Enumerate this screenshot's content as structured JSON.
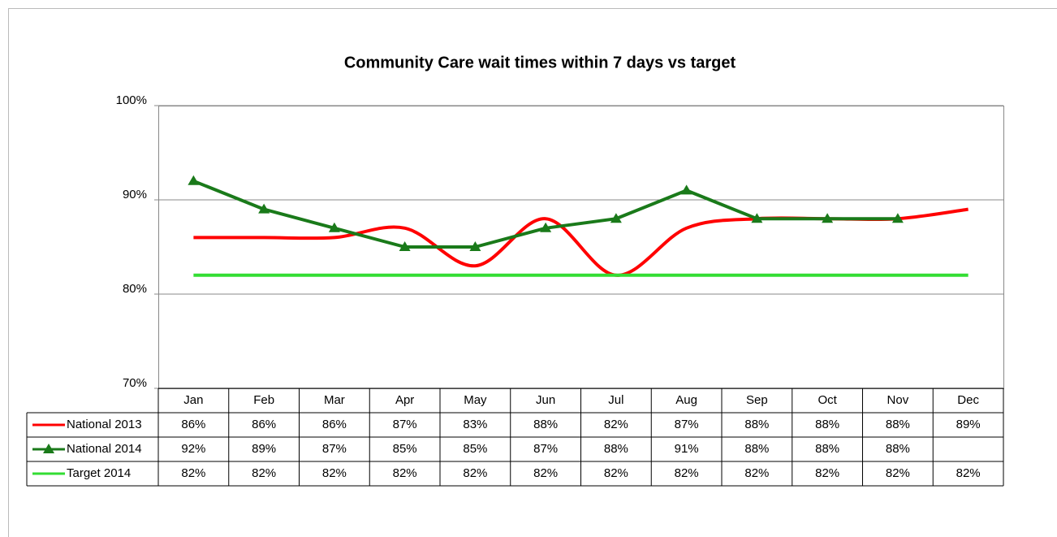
{
  "chart_data": {
    "type": "line",
    "title": "Community Care wait times within 7 days vs target",
    "categories": [
      "Jan",
      "Feb",
      "Mar",
      "Apr",
      "May",
      "Jun",
      "Jul",
      "Aug",
      "Sep",
      "Oct",
      "Nov",
      "Dec"
    ],
    "series": [
      {
        "name": "National 2013",
        "color": "#ff0000",
        "smooth": true,
        "marker": null,
        "values": [
          86,
          86,
          86,
          87,
          83,
          88,
          82,
          87,
          88,
          88,
          88,
          89
        ],
        "value_labels": [
          "86%",
          "86%",
          "86%",
          "87%",
          "83%",
          "88%",
          "82%",
          "87%",
          "88%",
          "88%",
          "88%",
          "89%"
        ]
      },
      {
        "name": "National 2014",
        "color": "#1a7a1a",
        "smooth": false,
        "marker": "triangle",
        "values": [
          92,
          89,
          87,
          85,
          85,
          87,
          88,
          91,
          88,
          88,
          88,
          null
        ],
        "value_labels": [
          "92%",
          "89%",
          "87%",
          "85%",
          "85%",
          "87%",
          "88%",
          "91%",
          "88%",
          "88%",
          "88%",
          null
        ]
      },
      {
        "name": "Target 2014",
        "color": "#33dd33",
        "smooth": false,
        "marker": null,
        "values": [
          82,
          82,
          82,
          82,
          82,
          82,
          82,
          82,
          82,
          82,
          82,
          82
        ],
        "value_labels": [
          "82%",
          "82%",
          "82%",
          "82%",
          "82%",
          "82%",
          "82%",
          "82%",
          "82%",
          "82%",
          "82%",
          "82%"
        ]
      }
    ],
    "ylim": [
      70,
      100
    ],
    "yticks": [
      {
        "value": 70,
        "label": "70%"
      },
      {
        "value": 80,
        "label": "80%"
      },
      {
        "value": 90,
        "label": "90%"
      },
      {
        "value": 100,
        "label": "100%"
      }
    ],
    "grid": true,
    "legend": "data-table"
  }
}
